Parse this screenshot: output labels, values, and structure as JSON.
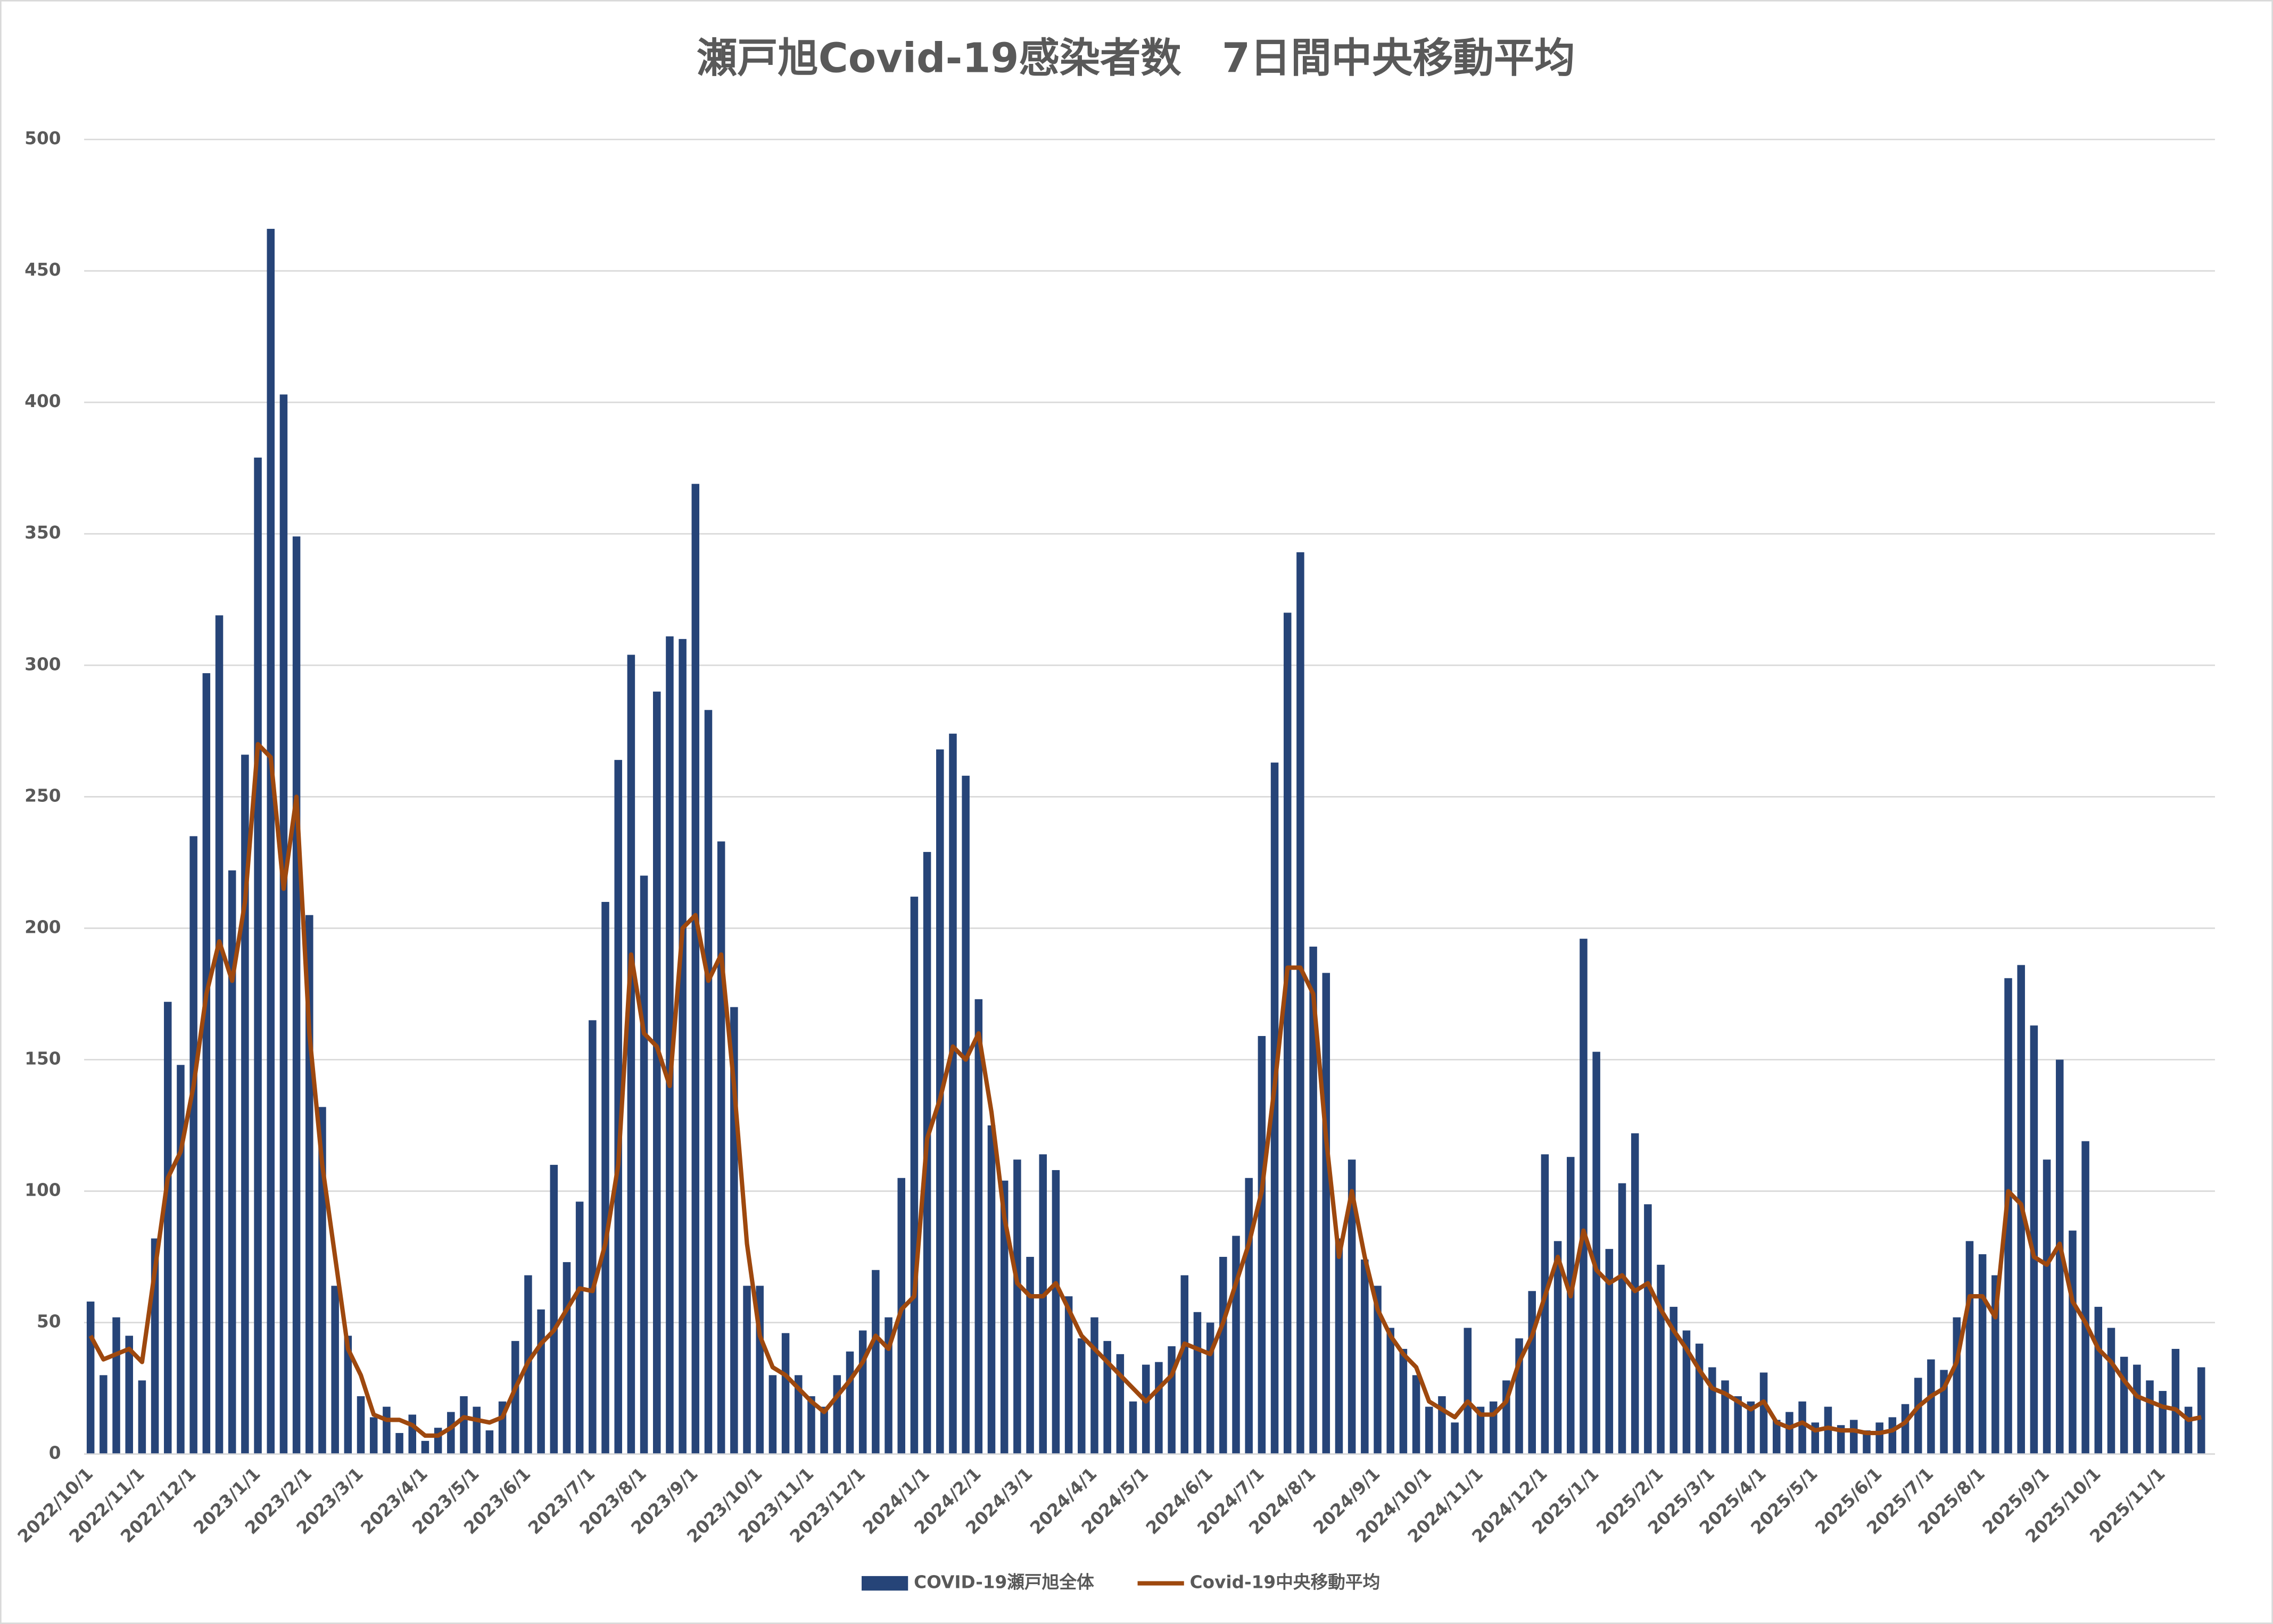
{
  "chart_data": {
    "type": "bar",
    "title": "瀬戸旭Covid-19感染者数　7日間中央移動平均",
    "categories": [
      "2022/10/1",
      null,
      null,
      null,
      "2022/11/1",
      null,
      null,
      null,
      "2022/12/1",
      null,
      null,
      null,
      null,
      "2023/1/1",
      null,
      null,
      null,
      "2023/2/1",
      null,
      null,
      null,
      "2023/3/1",
      null,
      null,
      null,
      null,
      "2023/4/1",
      null,
      null,
      null,
      "2023/5/1",
      null,
      null,
      null,
      "2023/6/1",
      null,
      null,
      null,
      null,
      "2023/7/1",
      null,
      null,
      null,
      "2023/8/1",
      null,
      null,
      null,
      "2023/9/1",
      null,
      null,
      null,
      null,
      "2023/10/1",
      null,
      null,
      null,
      "2023/11/1",
      null,
      null,
      null,
      "2023/12/1",
      null,
      null,
      null,
      null,
      "2024/1/1",
      null,
      null,
      null,
      "2024/2/1",
      null,
      null,
      null,
      "2024/3/1",
      null,
      null,
      null,
      null,
      "2024/4/1",
      null,
      null,
      null,
      "2024/5/1",
      null,
      null,
      null,
      null,
      "2024/6/1",
      null,
      null,
      null,
      "2024/7/1",
      null,
      null,
      null,
      "2024/8/1",
      null,
      null,
      null,
      null,
      "2024/9/1",
      null,
      null,
      null,
      "2024/10/1",
      null,
      null,
      null,
      "2024/11/1",
      null,
      null,
      null,
      null,
      "2024/12/1",
      null,
      null,
      null,
      "2025/1/1",
      null,
      null,
      null,
      null,
      "2025/2/1",
      null,
      null,
      null,
      "2025/3/1",
      null,
      null,
      null,
      "2025/4/1",
      null,
      null,
      null,
      "2025/5/1",
      null,
      null,
      null,
      null,
      "2025/6/1",
      null,
      null,
      null,
      "2025/7/1",
      null,
      null,
      null,
      "2025/8/1",
      null,
      null,
      null,
      null,
      "2025/9/1",
      null,
      null,
      null,
      "2025/10/1",
      null,
      null,
      null,
      null,
      "2025/11/1",
      null,
      null,
      null
    ],
    "series": [
      {
        "name": "COVID-19瀬戸旭全体",
        "color": "#264478",
        "values": [
          58,
          30,
          52,
          45,
          28,
          82,
          172,
          148,
          235,
          297,
          319,
          222,
          266,
          379,
          466,
          403,
          349,
          205,
          132,
          64,
          45,
          22,
          14,
          18,
          8,
          15,
          5,
          10,
          16,
          22,
          18,
          9,
          20,
          43,
          68,
          55,
          110,
          73,
          96,
          165,
          210,
          264,
          304,
          220,
          290,
          311,
          310,
          369,
          283,
          233,
          170,
          64,
          64,
          30,
          46,
          30,
          22,
          18,
          30,
          39,
          47,
          70,
          52,
          105,
          212,
          229,
          268,
          274,
          258,
          173,
          125,
          104,
          112,
          75,
          114,
          108,
          60,
          44,
          52,
          43,
          38,
          20,
          34,
          35,
          41,
          68,
          54,
          50,
          75,
          83,
          105,
          159,
          263,
          320,
          343,
          193,
          183,
          82,
          112,
          74,
          64,
          48,
          40,
          30,
          18,
          22,
          12,
          48,
          18,
          20,
          28,
          44,
          62,
          114,
          81,
          113,
          196,
          153,
          78,
          103,
          122,
          95,
          72,
          56,
          47,
          42,
          33,
          28,
          22,
          20,
          31,
          13,
          16,
          20,
          12,
          18,
          11,
          13,
          9,
          12,
          14,
          19,
          29,
          36,
          32,
          52,
          81,
          76,
          68,
          181,
          186,
          163,
          112,
          150,
          85,
          119,
          56,
          48,
          37,
          34,
          28,
          24,
          40,
          18,
          33
        ]
      },
      {
        "name": "Covid-19中央移動平均",
        "color": "#9e480e",
        "type": "line",
        "values": [
          45,
          36,
          38,
          40,
          35,
          70,
          105,
          115,
          140,
          175,
          195,
          180,
          210,
          270,
          265,
          215,
          250,
          160,
          110,
          75,
          40,
          30,
          15,
          13,
          13,
          11,
          7,
          7,
          10,
          14,
          13,
          12,
          14,
          25,
          35,
          42,
          47,
          55,
          63,
          62,
          80,
          110,
          190,
          160,
          155,
          140,
          200,
          205,
          180,
          190,
          140,
          80,
          45,
          33,
          30,
          25,
          20,
          16,
          22,
          28,
          35,
          45,
          40,
          55,
          60,
          120,
          135,
          155,
          150,
          160,
          130,
          90,
          65,
          60,
          60,
          65,
          55,
          45,
          40,
          35,
          30,
          25,
          20,
          25,
          30,
          42,
          40,
          38,
          50,
          65,
          80,
          100,
          140,
          185,
          185,
          175,
          120,
          75,
          100,
          75,
          55,
          45,
          38,
          33,
          20,
          17,
          14,
          20,
          15,
          15,
          20,
          35,
          45,
          60,
          75,
          60,
          85,
          70,
          65,
          68,
          62,
          65,
          55,
          47,
          40,
          32,
          25,
          23,
          20,
          17,
          20,
          12,
          10,
          12,
          9,
          10,
          9,
          9,
          8,
          8,
          9,
          12,
          18,
          22,
          25,
          35,
          60,
          60,
          52,
          100,
          95,
          75,
          72,
          80,
          58,
          50,
          40,
          35,
          28,
          22,
          20,
          18,
          17,
          13,
          14
        ]
      }
    ],
    "ylim": [
      0,
      500
    ],
    "yticks": [
      0,
      50,
      100,
      150,
      200,
      250,
      300,
      350,
      400,
      450,
      500
    ],
    "grid": true
  }
}
